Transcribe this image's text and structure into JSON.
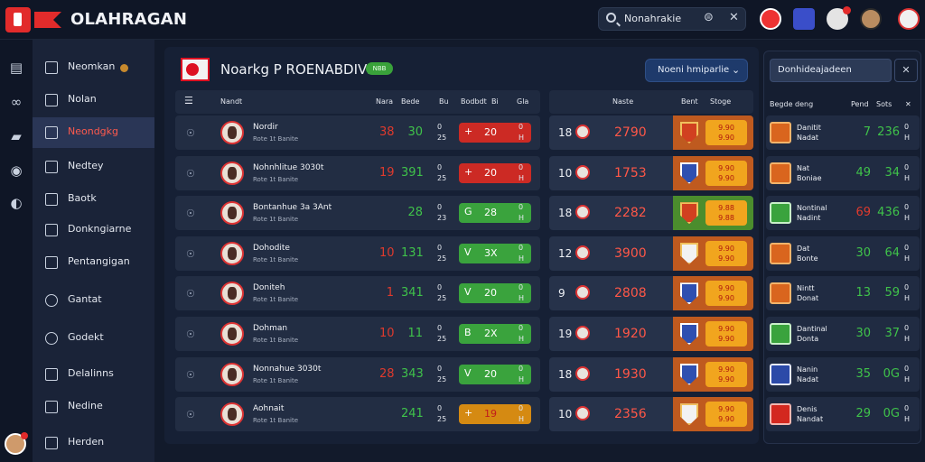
{
  "header": {
    "brand": "OLAHRAGAN",
    "search_value": "Nonahrakie"
  },
  "sidebar": {
    "items": [
      {
        "label": "Neomkan"
      },
      {
        "label": "Nolan"
      },
      {
        "label": "Neondgkg"
      },
      {
        "label": "Nedtey"
      },
      {
        "label": "Baotk"
      },
      {
        "label": "Donkngiarne"
      },
      {
        "label": "Pentangigan"
      },
      {
        "label": "Gantat"
      },
      {
        "label": "Godekt"
      },
      {
        "label": "Delalinns"
      },
      {
        "label": "Nedine"
      },
      {
        "label": "Herden"
      }
    ]
  },
  "main": {
    "title": "Noarkg P ROENABDIVE",
    "badge": "NBB",
    "dropdown": "Noeni hmiparlie",
    "left_headers": [
      "Nandt",
      "Nara",
      "Bede",
      "Bu",
      "Bodbdt",
      "Bi",
      "Gla"
    ],
    "center_headers": [
      "Naste",
      "Bent",
      "Stoge"
    ],
    "rows": [
      {
        "team": "Nordir",
        "sub": "Rote 1t Banite",
        "n1": "38",
        "n1_color": "red",
        "n2": "30",
        "mini": "0\n25",
        "glyph": "+",
        "chip": "20",
        "chip_color": "red",
        "tail": "0\nH",
        "rank": "18",
        "big": "2790",
        "band": "orange",
        "shield": "red",
        "yv": "9.90\n9.90"
      },
      {
        "team": "Nohnhlitue 3030t",
        "sub": "Rote 1t Banite",
        "n1": "19",
        "n1_color": "red",
        "n2": "391",
        "mini": "0\n25",
        "glyph": "+",
        "chip": "20",
        "chip_color": "red",
        "tail": "0\nH",
        "rank": "10",
        "big": "1753",
        "band": "orange",
        "shield": "blue",
        "yv": "9.90\n9.90"
      },
      {
        "team": "Bontanhue 3a 3Ant",
        "sub": "Rote 1t Banite",
        "n1": "",
        "n1_color": "red",
        "n2": "28",
        "mini": "0\n23",
        "glyph": "G",
        "chip": "28",
        "chip_color": "green",
        "tail": "0\nH",
        "rank": "18",
        "big": "2282",
        "band": "green",
        "shield": "red",
        "yv": "9.88\n9.88"
      },
      {
        "team": "Dohodite",
        "sub": "Rote 1t Banite",
        "n1": "10",
        "n1_color": "red",
        "n2": "131",
        "mini": "0\n25",
        "glyph": "V",
        "chip": "3X",
        "chip_color": "green",
        "tail": "0\nH",
        "rank": "12",
        "big": "3900",
        "band": "orange",
        "shield": "white",
        "yv": "9.90\n9.90"
      },
      {
        "team": "Doniteh",
        "sub": "Rote 1t Banite",
        "n1": "1",
        "n1_color": "red",
        "n2": "341",
        "mini": "0\n25",
        "glyph": "V",
        "chip": "20",
        "chip_color": "green",
        "tail": "0\nH",
        "rank": "9",
        "big": "2808",
        "band": "orange",
        "shield": "blue",
        "yv": "9.90\n9.90"
      },
      {
        "team": "Dohman",
        "sub": "Rote 1t Banite",
        "n1": "10",
        "n1_color": "red",
        "n2": "11",
        "mini": "0\n25",
        "glyph": "B",
        "chip": "2X",
        "chip_color": "green",
        "tail": "0\nH",
        "rank": "19",
        "big": "1920",
        "band": "orange",
        "shield": "blue",
        "yv": "9.90\n9.90"
      },
      {
        "team": "Nonnahue 3030t",
        "sub": "Rote 1t Banite",
        "n1": "28",
        "n1_color": "red",
        "n2": "343",
        "mini": "0\n25",
        "glyph": "V",
        "chip": "20",
        "chip_color": "green",
        "tail": "0\nH",
        "rank": "18",
        "big": "1930",
        "band": "orange",
        "shield": "blue",
        "yv": "9.90\n9.90"
      },
      {
        "team": "Aohnait",
        "sub": "Rote 1t Banite",
        "n1": "",
        "n1_color": "red",
        "n2": "241",
        "mini": "0\n25",
        "glyph": "+",
        "chip": "19",
        "chip_color": "amber",
        "tail": "0\nH",
        "rank": "10",
        "big": "2356",
        "band": "orange",
        "shield": "white",
        "yv": "9.90\n9.90"
      }
    ]
  },
  "right": {
    "select": "Donhideajadeen",
    "headers": [
      "Begde deng",
      "Pend",
      "Sots"
    ],
    "rows": [
      {
        "name": "Danitit\nNadat",
        "v1": "7",
        "v1_color": "green",
        "v2": "236",
        "tail": "0\nH",
        "shield": "orange"
      },
      {
        "name": "Nat\nBoniae",
        "v1": "49",
        "v1_color": "green",
        "v2": "34",
        "tail": "0\nH",
        "shield": "orange"
      },
      {
        "name": "Nontinal\nNadint",
        "v1": "69",
        "v1_color": "red",
        "v2": "436",
        "tail": "0\nH",
        "shield": "green"
      },
      {
        "name": "Dat\nBonte",
        "v1": "30",
        "v1_color": "green",
        "v2": "64",
        "tail": "0\nH",
        "shield": "orange"
      },
      {
        "name": "Nintt\nDonat",
        "v1": "13",
        "v1_color": "green",
        "v2": "59",
        "tail": "0\nH",
        "shield": "orange"
      },
      {
        "name": "Dantinal\nDonta",
        "v1": "30",
        "v1_color": "green",
        "v2": "37",
        "tail": "0\nH",
        "shield": "green"
      },
      {
        "name": "Nanin\nNadat",
        "v1": "35",
        "v1_color": "green",
        "v2": "0G",
        "tail": "0\nH",
        "shield": "blue"
      },
      {
        "name": "Denis\nNandat",
        "v1": "29",
        "v1_color": "green",
        "v2": "0G",
        "tail": "0\nH",
        "shield": "red"
      }
    ]
  }
}
